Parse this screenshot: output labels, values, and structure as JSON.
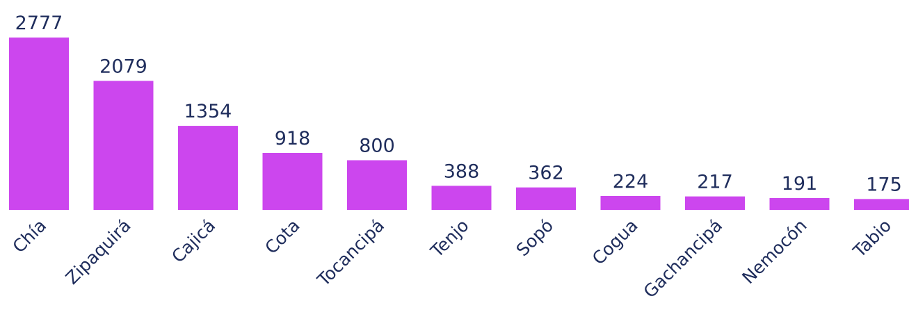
{
  "chart_data": {
    "type": "bar",
    "categories": [
      "Chía",
      "Zipaquirá",
      "Cajicá",
      "Cota",
      "Tocancipá",
      "Tenjo",
      "Sopó",
      "Cogua",
      "Gachancipá",
      "Nemocón",
      "Tabio"
    ],
    "values": [
      2777,
      2079,
      1354,
      918,
      800,
      388,
      362,
      224,
      217,
      191,
      175
    ],
    "color": "#cc46ee"
  }
}
